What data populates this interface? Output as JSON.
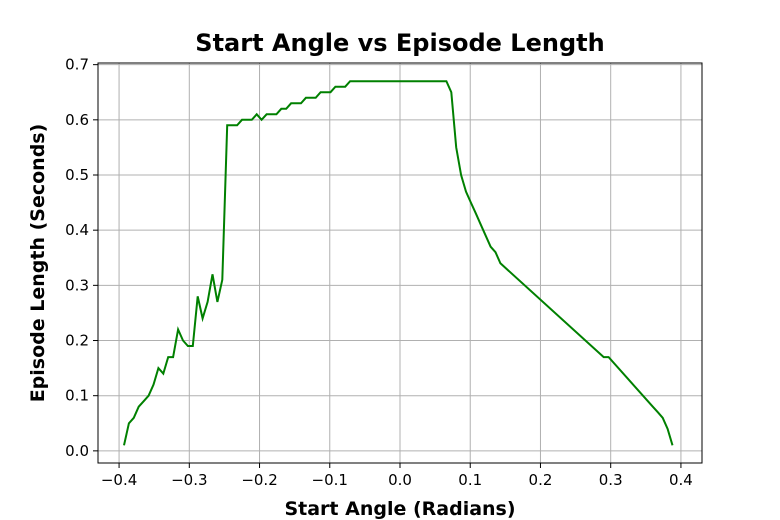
{
  "chart_data": {
    "type": "line",
    "title": "Start Angle vs Episode Length",
    "xlabel": "Start Angle (Radians)",
    "ylabel": "Episode Length (Seconds)",
    "xlim": [
      -0.43,
      0.43
    ],
    "ylim": [
      -0.022,
      0.703
    ],
    "xticks": [
      -0.4,
      -0.3,
      -0.2,
      -0.1,
      0.0,
      0.1,
      0.2,
      0.3,
      0.4
    ],
    "xtick_labels": [
      "−0.4",
      "−0.3",
      "−0.2",
      "−0.1",
      "0.0",
      "0.1",
      "0.2",
      "0.3",
      "0.4"
    ],
    "yticks": [
      0.0,
      0.1,
      0.2,
      0.3,
      0.4,
      0.5,
      0.6,
      0.7
    ],
    "ytick_labels": [
      "0.0",
      "0.1",
      "0.2",
      "0.3",
      "0.4",
      "0.5",
      "0.6",
      "0.7"
    ],
    "grid": true,
    "line_color": "#008000",
    "grid_color": "#b0b0b0",
    "series": [
      {
        "color": "#008000",
        "points": [
          [
            -0.393,
            0.01
          ],
          [
            -0.386,
            0.05
          ],
          [
            -0.379,
            0.06
          ],
          [
            -0.372,
            0.08
          ],
          [
            -0.365,
            0.09
          ],
          [
            -0.358,
            0.1
          ],
          [
            -0.351,
            0.12
          ],
          [
            -0.344,
            0.15
          ],
          [
            -0.337,
            0.14
          ],
          [
            -0.33,
            0.17
          ],
          [
            -0.323,
            0.17
          ],
          [
            -0.316,
            0.22
          ],
          [
            -0.309,
            0.2
          ],
          [
            -0.302,
            0.19
          ],
          [
            -0.295,
            0.19
          ],
          [
            -0.288,
            0.28
          ],
          [
            -0.281,
            0.24
          ],
          [
            -0.274,
            0.27
          ],
          [
            -0.267,
            0.32
          ],
          [
            -0.26,
            0.27
          ],
          [
            -0.253,
            0.31
          ],
          [
            -0.246,
            0.59
          ],
          [
            -0.239,
            0.59
          ],
          [
            -0.232,
            0.59
          ],
          [
            -0.225,
            0.6
          ],
          [
            -0.218,
            0.6
          ],
          [
            -0.211,
            0.6
          ],
          [
            -0.204,
            0.61
          ],
          [
            -0.197,
            0.6
          ],
          [
            -0.19,
            0.61
          ],
          [
            -0.183,
            0.61
          ],
          [
            -0.176,
            0.61
          ],
          [
            -0.169,
            0.62
          ],
          [
            -0.162,
            0.62
          ],
          [
            -0.155,
            0.63
          ],
          [
            -0.148,
            0.63
          ],
          [
            -0.141,
            0.63
          ],
          [
            -0.134,
            0.64
          ],
          [
            -0.127,
            0.64
          ],
          [
            -0.12,
            0.64
          ],
          [
            -0.113,
            0.65
          ],
          [
            -0.106,
            0.65
          ],
          [
            -0.099,
            0.65
          ],
          [
            -0.092,
            0.66
          ],
          [
            -0.085,
            0.66
          ],
          [
            -0.078,
            0.66
          ],
          [
            -0.071,
            0.67
          ],
          [
            -0.064,
            0.67
          ],
          [
            -0.057,
            0.67
          ],
          [
            -0.05,
            0.67
          ],
          [
            -0.043,
            0.67
          ],
          [
            -0.036,
            0.67
          ],
          [
            0.0,
            0.67
          ],
          [
            0.05,
            0.67
          ],
          [
            0.066,
            0.67
          ],
          [
            0.073,
            0.65
          ],
          [
            0.08,
            0.55
          ],
          [
            0.087,
            0.5
          ],
          [
            0.094,
            0.47
          ],
          [
            0.101,
            0.45
          ],
          [
            0.108,
            0.43
          ],
          [
            0.115,
            0.41
          ],
          [
            0.122,
            0.39
          ],
          [
            0.129,
            0.37
          ],
          [
            0.136,
            0.36
          ],
          [
            0.143,
            0.34
          ],
          [
            0.29,
            0.17
          ],
          [
            0.297,
            0.17
          ],
          [
            0.36,
            0.08
          ],
          [
            0.367,
            0.07
          ],
          [
            0.374,
            0.06
          ],
          [
            0.381,
            0.04
          ],
          [
            0.388,
            0.01
          ]
        ]
      }
    ]
  }
}
